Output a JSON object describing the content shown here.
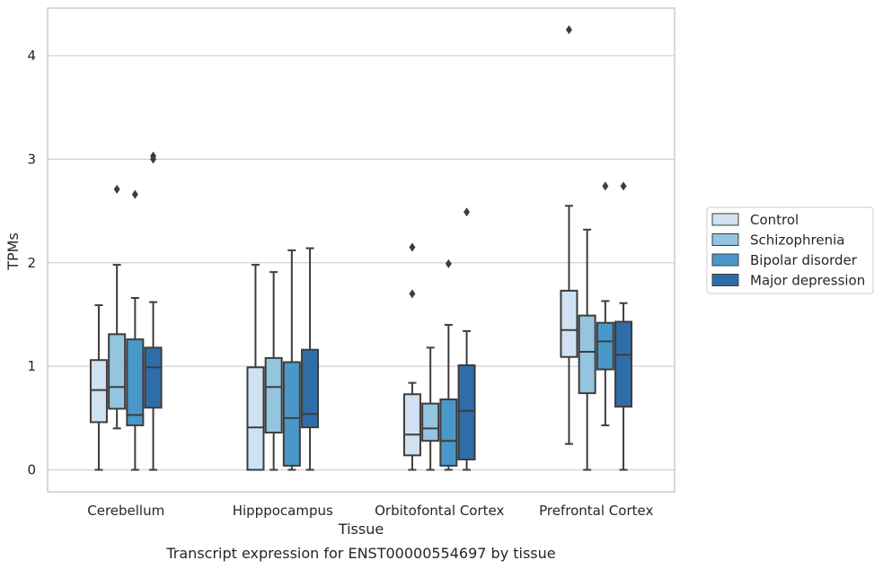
{
  "chart_data": {
    "type": "box",
    "title": "Transcript expression for ENST00000554697 by tissue",
    "xlabel": "Tissue",
    "ylabel": "TPMs",
    "ylim": [
      -0.2,
      4.45
    ],
    "yticks": [
      0,
      1,
      2,
      3,
      4
    ],
    "grid": true,
    "legend_position": "right",
    "categories": [
      "Cerebellum",
      "Hipppocampus",
      "Orbitofontal Cortex",
      "Prefrontal Cortex"
    ],
    "series": [
      {
        "name": "Control",
        "color": "#d0e1f2",
        "boxes": [
          {
            "whisker_low": 0.0,
            "q1": 0.46,
            "median": 0.77,
            "q3": 1.06,
            "whisker_high": 1.59,
            "outliers": []
          },
          {
            "whisker_low": 0.0,
            "q1": 0.0,
            "median": 0.41,
            "q3": 0.99,
            "whisker_high": 1.98,
            "outliers": []
          },
          {
            "whisker_low": 0.0,
            "q1": 0.14,
            "median": 0.34,
            "q3": 0.73,
            "whisker_high": 0.84,
            "outliers": [
              1.7,
              2.15
            ]
          },
          {
            "whisker_low": 0.25,
            "q1": 1.09,
            "median": 1.35,
            "q3": 1.73,
            "whisker_high": 2.55,
            "outliers": [
              4.25
            ]
          }
        ]
      },
      {
        "name": "Schizophrenia",
        "color": "#94c4df",
        "boxes": [
          {
            "whisker_low": 0.4,
            "q1": 0.59,
            "median": 0.8,
            "q3": 1.31,
            "whisker_high": 1.98,
            "outliers": [
              2.71
            ]
          },
          {
            "whisker_low": 0.0,
            "q1": 0.36,
            "median": 0.8,
            "q3": 1.08,
            "whisker_high": 1.91,
            "outliers": []
          },
          {
            "whisker_low": 0.0,
            "q1": 0.28,
            "median": 0.4,
            "q3": 0.64,
            "whisker_high": 1.18,
            "outliers": []
          },
          {
            "whisker_low": 0.0,
            "q1": 0.74,
            "median": 1.14,
            "q3": 1.49,
            "whisker_high": 2.32,
            "outliers": []
          }
        ]
      },
      {
        "name": "Bipolar disorder",
        "color": "#4a98c9",
        "boxes": [
          {
            "whisker_low": 0.0,
            "q1": 0.43,
            "median": 0.53,
            "q3": 1.26,
            "whisker_high": 1.66,
            "outliers": [
              2.66
            ]
          },
          {
            "whisker_low": 0.0,
            "q1": 0.04,
            "median": 0.5,
            "q3": 1.04,
            "whisker_high": 2.12,
            "outliers": []
          },
          {
            "whisker_low": 0.0,
            "q1": 0.04,
            "median": 0.28,
            "q3": 0.68,
            "whisker_high": 1.4,
            "outliers": [
              1.99
            ]
          },
          {
            "whisker_low": 0.43,
            "q1": 0.97,
            "median": 1.24,
            "q3": 1.42,
            "whisker_high": 1.63,
            "outliers": [
              2.74
            ]
          }
        ]
      },
      {
        "name": "Major depression",
        "color": "#2f6da8",
        "boxes": [
          {
            "whisker_low": 0.0,
            "q1": 0.6,
            "median": 0.99,
            "q3": 1.18,
            "whisker_high": 1.62,
            "outliers": [
              3.0,
              3.03
            ]
          },
          {
            "whisker_low": 0.0,
            "q1": 0.41,
            "median": 0.54,
            "q3": 1.16,
            "whisker_high": 2.14,
            "outliers": []
          },
          {
            "whisker_low": 0.0,
            "q1": 0.1,
            "median": 0.57,
            "q3": 1.01,
            "whisker_high": 1.34,
            "outliers": [
              2.49
            ]
          },
          {
            "whisker_low": 0.0,
            "q1": 0.61,
            "median": 1.11,
            "q3": 1.43,
            "whisker_high": 1.61,
            "outliers": [
              2.74
            ]
          }
        ]
      }
    ]
  }
}
